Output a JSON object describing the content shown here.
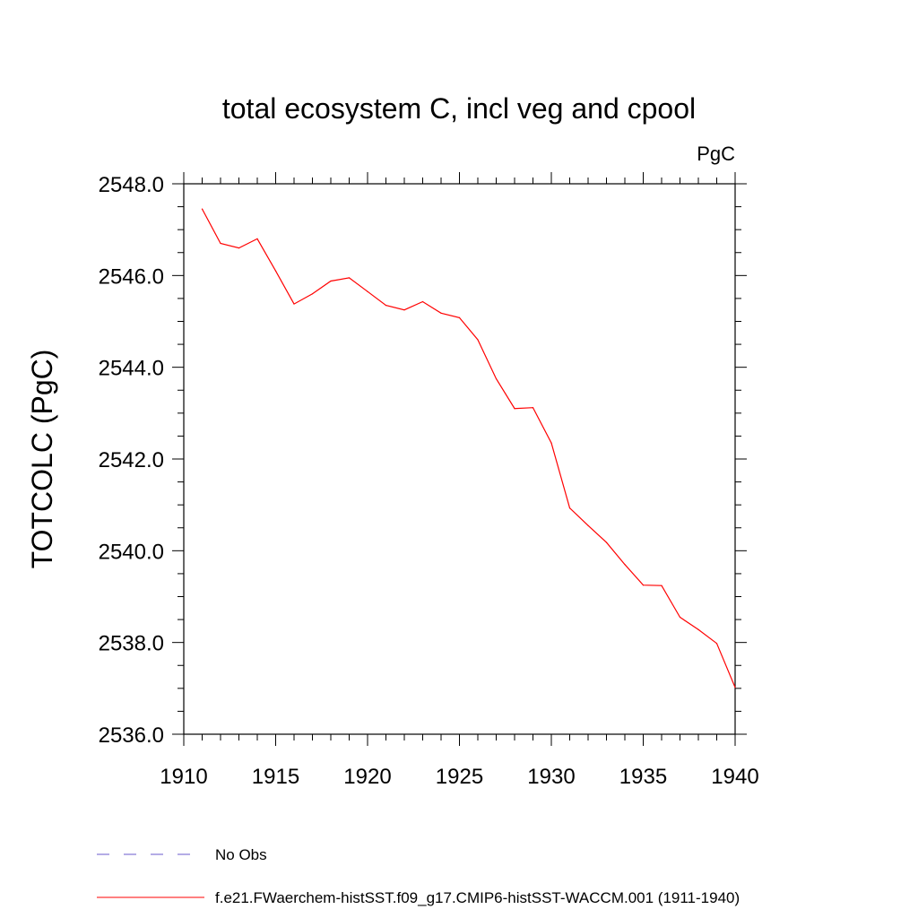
{
  "chart_data": {
    "type": "line",
    "title": "total ecosystem C, incl veg and cpool",
    "units": "PgC",
    "xlabel": "",
    "ylabel": "TOTCOLC  (PgC)",
    "xlim": [
      1910,
      1940
    ],
    "ylim": [
      2536.0,
      2548.0
    ],
    "x_ticks": [
      1910,
      1915,
      1920,
      1925,
      1930,
      1935,
      1940
    ],
    "x_tick_labels": [
      "1910",
      "1915",
      "1920",
      "1925",
      "1930",
      "1935",
      "1940"
    ],
    "y_ticks": [
      2536.0,
      2538.0,
      2540.0,
      2542.0,
      2544.0,
      2546.0,
      2548.0
    ],
    "y_tick_labels": [
      "2536.0",
      "2538.0",
      "2540.0",
      "2542.0",
      "2544.0",
      "2546.0",
      "2548.0"
    ],
    "grid": false,
    "legend_position": "bottom",
    "series": [
      {
        "name": "No Obs",
        "style": "dashed",
        "color": "#6a5acd",
        "x": [],
        "y": []
      },
      {
        "name": "f.e21.FWaerchem-histSST.f09_g17.CMIP6-histSST-WACCM.001 (1911-1940)",
        "style": "solid",
        "color": "#ff0000",
        "x": [
          1911,
          1912,
          1913,
          1914,
          1915,
          1916,
          1917,
          1918,
          1919,
          1920,
          1921,
          1922,
          1923,
          1924,
          1925,
          1926,
          1927,
          1928,
          1929,
          1930,
          1931,
          1932,
          1933,
          1934,
          1935,
          1936,
          1937,
          1938,
          1939,
          1940
        ],
        "y": [
          2547.45,
          2546.7,
          2546.6,
          2546.8,
          2546.1,
          2545.38,
          2545.6,
          2545.88,
          2545.95,
          2545.65,
          2545.35,
          2545.25,
          2545.43,
          2545.18,
          2545.08,
          2544.6,
          2543.75,
          2543.1,
          2543.12,
          2542.35,
          2540.93,
          2540.55,
          2540.18,
          2539.7,
          2539.25,
          2539.24,
          2538.55,
          2538.28,
          2537.98,
          2537.02
        ]
      }
    ]
  }
}
